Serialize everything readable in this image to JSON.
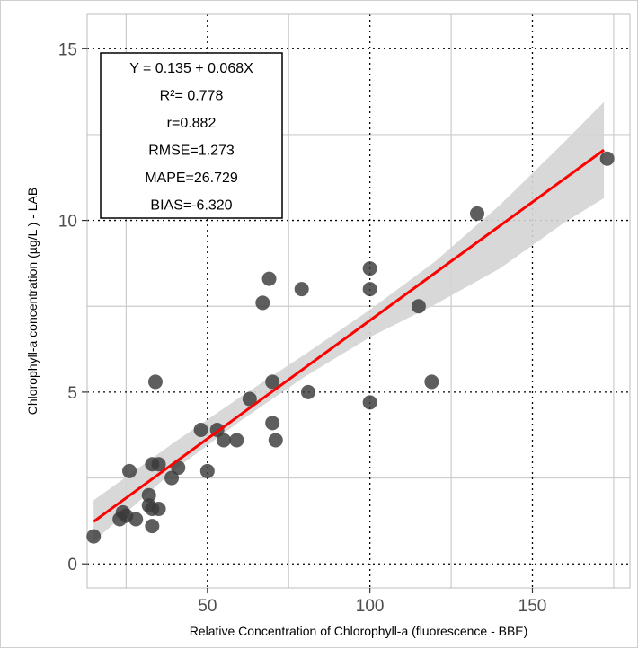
{
  "chart_data": {
    "type": "scatter",
    "title": "",
    "xlabel": "Relative Concentration of Chlorophyll-a (fluorescence - BBE)",
    "ylabel": "Chlorophyll-a concentration (µg/L ) - LAB",
    "xlim": [
      13,
      180
    ],
    "ylim": [
      -0.7,
      16
    ],
    "x_ticks": [
      50,
      100,
      150
    ],
    "y_ticks": [
      0,
      5,
      10,
      15
    ],
    "grid": true,
    "points": [
      {
        "x": 15,
        "y": 0.8
      },
      {
        "x": 23,
        "y": 1.3
      },
      {
        "x": 24,
        "y": 1.5
      },
      {
        "x": 25,
        "y": 1.4
      },
      {
        "x": 26,
        "y": 2.7
      },
      {
        "x": 28,
        "y": 1.3
      },
      {
        "x": 32,
        "y": 2.0
      },
      {
        "x": 32,
        "y": 1.7
      },
      {
        "x": 33,
        "y": 1.1
      },
      {
        "x": 33,
        "y": 1.6
      },
      {
        "x": 33,
        "y": 2.9
      },
      {
        "x": 34,
        "y": 5.3
      },
      {
        "x": 35,
        "y": 2.9
      },
      {
        "x": 35,
        "y": 1.6
      },
      {
        "x": 39,
        "y": 2.5
      },
      {
        "x": 41,
        "y": 2.8
      },
      {
        "x": 48,
        "y": 3.9
      },
      {
        "x": 50,
        "y": 2.7
      },
      {
        "x": 53,
        "y": 3.9
      },
      {
        "x": 55,
        "y": 3.6
      },
      {
        "x": 59,
        "y": 3.6
      },
      {
        "x": 63,
        "y": 4.8
      },
      {
        "x": 67,
        "y": 7.6
      },
      {
        "x": 69,
        "y": 8.3
      },
      {
        "x": 70,
        "y": 5.3
      },
      {
        "x": 70,
        "y": 4.1
      },
      {
        "x": 71,
        "y": 3.6
      },
      {
        "x": 79,
        "y": 8.0
      },
      {
        "x": 81,
        "y": 5.0
      },
      {
        "x": 100,
        "y": 8.6
      },
      {
        "x": 100,
        "y": 8.0
      },
      {
        "x": 100,
        "y": 4.7
      },
      {
        "x": 115,
        "y": 7.5
      },
      {
        "x": 119,
        "y": 5.3
      },
      {
        "x": 133,
        "y": 10.2
      },
      {
        "x": 173,
        "y": 11.8
      }
    ],
    "fit_line": {
      "x": [
        15,
        172
      ],
      "y": [
        1.23,
        12.05
      ],
      "color": "#ff0000"
    },
    "confidence_band": {
      "x": [
        15,
        40,
        60,
        80,
        100,
        120,
        140,
        160,
        172
      ],
      "lower": [
        0.65,
        2.75,
        4.15,
        5.45,
        6.6,
        7.55,
        8.6,
        9.95,
        10.65
      ],
      "upper": [
        1.85,
        3.55,
        4.85,
        6.1,
        7.4,
        8.8,
        10.45,
        12.3,
        13.45
      ],
      "color": "#d4d4d4"
    },
    "point_color": "#3a3a3a",
    "annotation": [
      "Y = 0.135 + 0.068X",
      "R²= 0.778",
      "r=0.882",
      "RMSE=1.273",
      "MAPE=26.729",
      "BIAS=-6.320"
    ]
  }
}
